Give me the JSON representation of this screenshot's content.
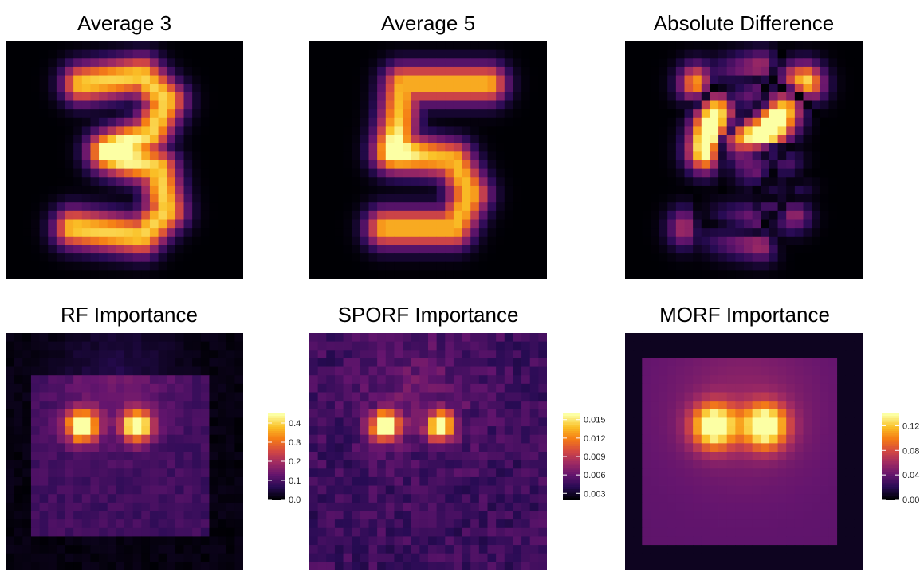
{
  "panels": [
    {
      "id": "avg3",
      "title": "Average 3"
    },
    {
      "id": "avg5",
      "title": "Average 5"
    },
    {
      "id": "diff",
      "title": "Absolute Difference"
    },
    {
      "id": "rf",
      "title": "RF Importance"
    },
    {
      "id": "sporf",
      "title": "SPORF Importance"
    },
    {
      "id": "morf",
      "title": "MORF Importance"
    }
  ],
  "colorbars": {
    "rf": {
      "ticks": [
        "0.0",
        "0.1",
        "0.2",
        "0.3",
        "0.4"
      ]
    },
    "sporf": {
      "ticks": [
        "0.003",
        "0.006",
        "0.009",
        "0.012",
        "0.015"
      ]
    },
    "morf": {
      "ticks": [
        "0.00",
        "0.04",
        "0.08",
        "0.12"
      ]
    }
  },
  "chart_data": [
    {
      "type": "heatmap",
      "title": "Average 3",
      "grid": "28x28",
      "colormap": "inferno"
    },
    {
      "type": "heatmap",
      "title": "Average 5",
      "grid": "28x28",
      "colormap": "inferno"
    },
    {
      "type": "heatmap",
      "title": "Absolute Difference",
      "grid": "28x28",
      "colormap": "inferno"
    },
    {
      "type": "heatmap",
      "title": "RF Importance",
      "grid": "28x28",
      "colormap": "inferno",
      "colorbar_range": [
        0.0,
        0.45
      ],
      "colorbar_ticks": [
        0.0,
        0.1,
        0.2,
        0.3,
        0.4
      ]
    },
    {
      "type": "heatmap",
      "title": "SPORF Importance",
      "grid": "28x28",
      "colormap": "inferno",
      "colorbar_range": [
        0.002,
        0.016
      ],
      "colorbar_ticks": [
        0.003,
        0.006,
        0.009,
        0.012,
        0.015
      ]
    },
    {
      "type": "heatmap",
      "title": "MORF Importance",
      "grid": "28x28",
      "colormap": "inferno",
      "colorbar_range": [
        0.0,
        0.14
      ],
      "colorbar_ticks": [
        0.0,
        0.04,
        0.08,
        0.12
      ]
    }
  ]
}
